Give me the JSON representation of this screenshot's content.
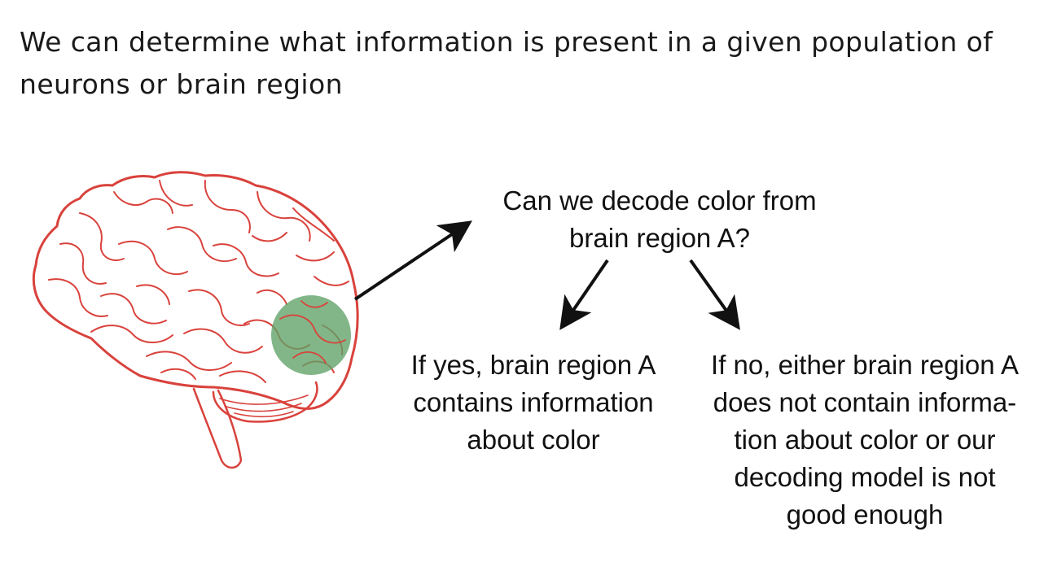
{
  "heading": {
    "line1": "We can determine what information is present in a given population of",
    "line2": "neurons or brain region"
  },
  "diagram": {
    "question": {
      "lines": [
        "Can we decode color from",
        "brain region A?"
      ]
    },
    "outcome_yes": {
      "lines": [
        "If yes, brain region A",
        "contains information",
        "about color"
      ]
    },
    "outcome_no": {
      "lines": [
        "If no, either brain region A",
        "does not contain informa-",
        "tion about color or our",
        "decoding model is not",
        "good enough"
      ]
    },
    "colors": {
      "brain_outline": "#d9423c",
      "region_highlight": "#5fa266",
      "arrow": "#111111"
    },
    "icons": [
      "brain-illustration",
      "brain-region-a-highlight"
    ]
  }
}
